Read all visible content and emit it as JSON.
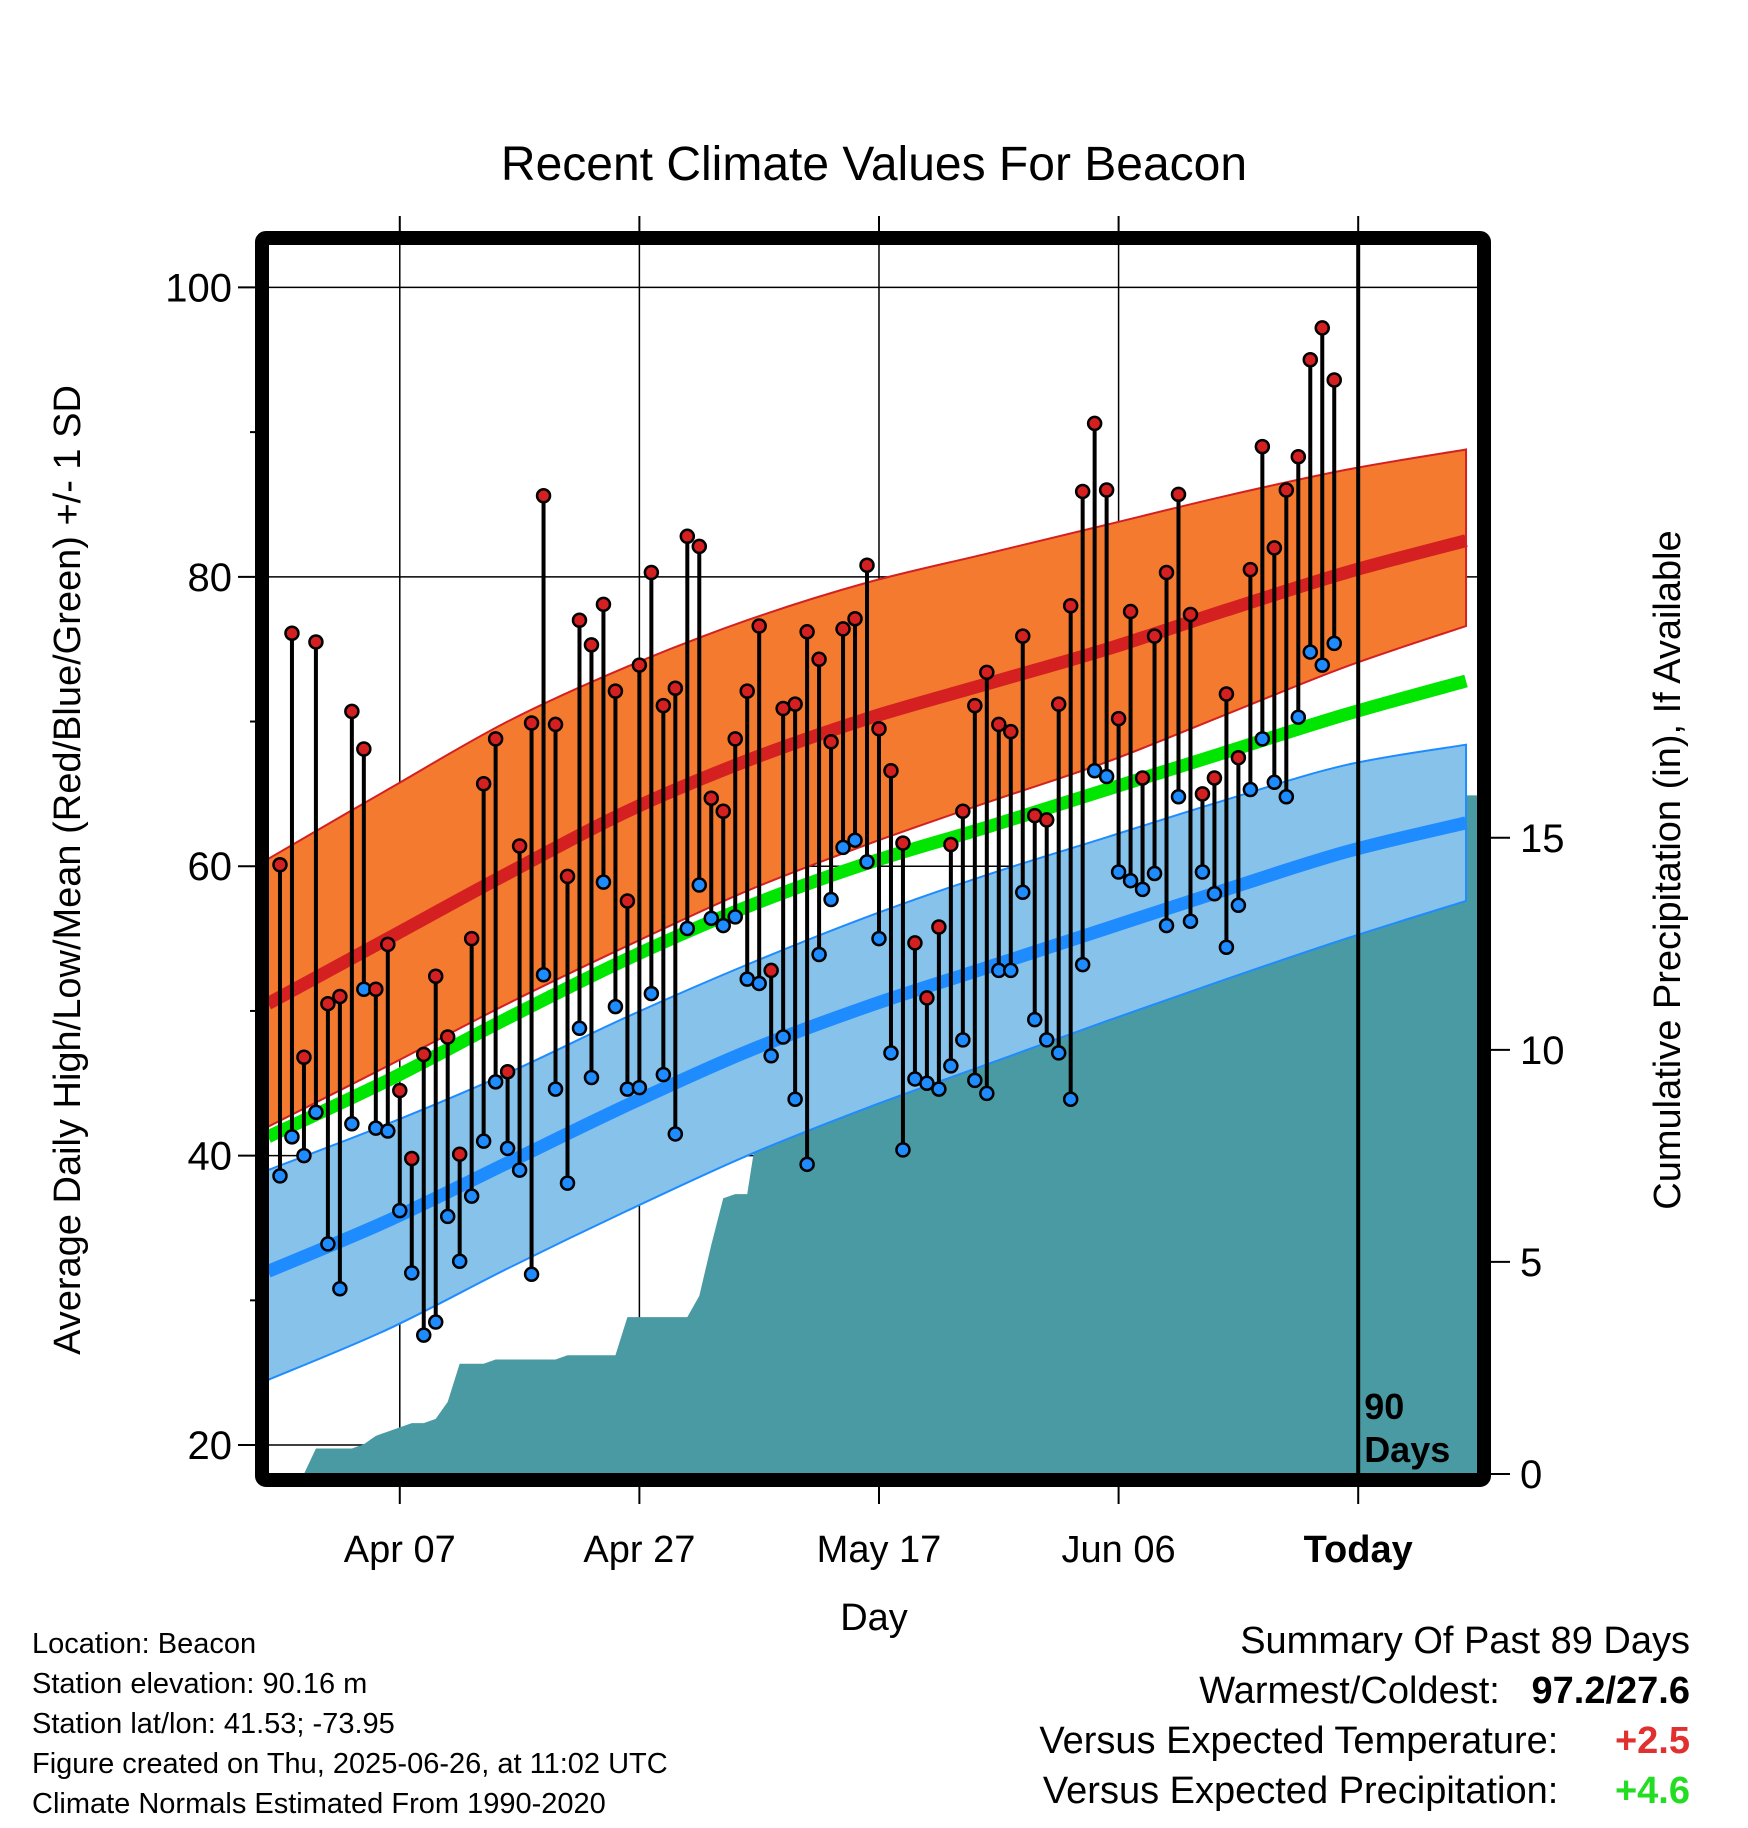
{
  "chart_data": {
    "type": "line",
    "title": "Recent Climate Values For Beacon",
    "xlabel": "Day",
    "ylabel": "Average Daily High/Low/Mean (Red/Blue/Green) +/- 1 SD",
    "y2label": "Cumulative Precipitation (in), If Available",
    "ylim": [
      18,
      103
    ],
    "y2lim": [
      0,
      29
    ],
    "y_ticks": [
      20,
      40,
      60,
      80,
      100
    ],
    "y2_ticks": [
      0,
      5,
      10,
      15
    ],
    "x_ticks": [
      {
        "day": 11,
        "label": "Apr 07"
      },
      {
        "day": 31,
        "label": "Apr 27"
      },
      {
        "day": 51,
        "label": "May 17"
      },
      {
        "day": 71,
        "label": "Jun 06"
      },
      {
        "day": 91,
        "label": "Today"
      }
    ],
    "xlim": [
      0,
      101
    ],
    "today_marker": {
      "day": 91,
      "label_line1": "90",
      "label_line2": "Days"
    },
    "grid": true,
    "colors": {
      "high": "#d42020",
      "high_band": "#f47a30",
      "low": "#1e8cff",
      "low_band": "#86c2ea",
      "mean": "#00e600",
      "precip": "#4a9aa3"
    },
    "normals": {
      "days": [
        0,
        10,
        20,
        30,
        40,
        50,
        60,
        70,
        80,
        90,
        100
      ],
      "high_mean": [
        50.5,
        55.0,
        59.5,
        63.8,
        67.3,
        70.2,
        72.6,
        75.0,
        77.7,
        80.3,
        82.5
      ],
      "high_upper": [
        60.5,
        65.3,
        70.0,
        73.8,
        77.0,
        79.6,
        81.6,
        83.6,
        85.6,
        87.4,
        88.8
      ],
      "high_lower": [
        42.0,
        46.2,
        50.5,
        54.5,
        58.3,
        61.5,
        64.4,
        67.2,
        70.5,
        73.8,
        76.6
      ],
      "low_mean": [
        32.0,
        35.5,
        39.5,
        43.5,
        47.2,
        50.3,
        53.0,
        55.7,
        58.4,
        61.0,
        63.0
      ],
      "low_upper": [
        39.0,
        42.2,
        45.7,
        49.6,
        53.2,
        56.5,
        59.4,
        62.0,
        64.6,
        67.0,
        68.4
      ],
      "low_lower": [
        24.5,
        28.0,
        32.2,
        36.2,
        40.0,
        43.3,
        46.3,
        49.3,
        52.2,
        55.0,
        57.6
      ],
      "mean": [
        41.3,
        45.2,
        49.5,
        53.6,
        57.2,
        60.2,
        62.7,
        65.3,
        67.9,
        70.5,
        72.8
      ]
    },
    "series": [
      {
        "name": "Daily High",
        "x": [
          1,
          2,
          3,
          4,
          5,
          6,
          7,
          8,
          9,
          10,
          11,
          12,
          13,
          14,
          15,
          16,
          17,
          18,
          19,
          20,
          21,
          22,
          23,
          24,
          25,
          26,
          27,
          28,
          29,
          30,
          31,
          32,
          33,
          34,
          35,
          36,
          37,
          38,
          39,
          40,
          41,
          42,
          43,
          44,
          45,
          46,
          47,
          48,
          49,
          50,
          51,
          52,
          53,
          54,
          55,
          56,
          57,
          58,
          59,
          60,
          61,
          62,
          63,
          64,
          65,
          66,
          67,
          68,
          69,
          70,
          71,
          72,
          73,
          74,
          75,
          76,
          77,
          78,
          79,
          80,
          81,
          82,
          83,
          84,
          85,
          86,
          87,
          88,
          89
        ],
        "values": [
          60.1,
          76.1,
          46.8,
          75.5,
          50.5,
          51.0,
          70.7,
          68.1,
          51.5,
          54.6,
          44.5,
          39.8,
          47.0,
          52.4,
          48.2,
          40.1,
          55.0,
          65.7,
          68.8,
          45.8,
          61.4,
          69.9,
          85.6,
          69.8,
          59.3,
          77.0,
          75.3,
          78.1,
          72.1,
          57.6,
          73.9,
          80.3,
          71.1,
          72.3,
          82.8,
          82.1,
          64.7,
          63.8,
          68.8,
          72.1,
          76.6,
          52.8,
          70.9,
          71.2,
          76.2,
          74.3,
          68.6,
          76.4,
          77.1,
          80.8,
          69.5,
          66.6,
          61.6,
          54.7,
          50.9,
          55.8,
          61.5,
          63.8,
          71.1,
          73.4,
          69.8,
          69.3,
          75.9,
          63.5,
          63.2,
          71.2,
          78.0,
          85.9,
          90.6,
          86.0,
          70.2,
          77.6,
          66.1,
          75.9,
          80.3,
          85.7,
          77.4,
          65.0,
          66.1,
          71.9,
          67.5,
          80.5,
          89.0,
          82.0,
          86.0,
          88.3,
          95.0,
          97.2,
          93.6
        ]
      },
      {
        "name": "Daily Low",
        "x": [
          1,
          2,
          3,
          4,
          5,
          6,
          7,
          8,
          9,
          10,
          11,
          12,
          13,
          14,
          15,
          16,
          17,
          18,
          19,
          20,
          21,
          22,
          23,
          24,
          25,
          26,
          27,
          28,
          29,
          30,
          31,
          32,
          33,
          34,
          35,
          36,
          37,
          38,
          39,
          40,
          41,
          42,
          43,
          44,
          45,
          46,
          47,
          48,
          49,
          50,
          51,
          52,
          53,
          54,
          55,
          56,
          57,
          58,
          59,
          60,
          61,
          62,
          63,
          64,
          65,
          66,
          67,
          68,
          69,
          70,
          71,
          72,
          73,
          74,
          75,
          76,
          77,
          78,
          79,
          80,
          81,
          82,
          83,
          84,
          85,
          86,
          87,
          88,
          89
        ],
        "values": [
          38.6,
          41.3,
          40.0,
          43.0,
          33.9,
          30.8,
          42.2,
          51.5,
          41.9,
          41.7,
          36.2,
          31.9,
          27.6,
          28.5,
          35.8,
          32.7,
          37.2,
          41.0,
          45.1,
          40.5,
          39.0,
          31.8,
          52.5,
          44.6,
          38.1,
          48.8,
          45.4,
          58.9,
          50.3,
          44.6,
          44.7,
          51.2,
          45.6,
          41.5,
          55.7,
          58.7,
          56.4,
          55.9,
          56.5,
          52.2,
          51.9,
          46.9,
          48.2,
          43.9,
          39.4,
          53.9,
          57.7,
          61.3,
          61.8,
          60.3,
          55.0,
          47.1,
          40.4,
          45.3,
          45.0,
          44.6,
          46.2,
          48.0,
          45.2,
          44.3,
          52.8,
          52.8,
          58.2,
          49.4,
          48.0,
          47.1,
          43.9,
          53.2,
          66.6,
          66.2,
          59.6,
          59.0,
          58.4,
          59.5,
          55.9,
          64.8,
          56.2,
          59.6,
          58.1,
          54.4,
          57.3,
          65.3,
          68.8,
          65.8,
          64.8,
          70.3,
          74.8,
          73.9,
          75.4
        ]
      }
    ],
    "precip_cumulative": {
      "days": [
        1,
        2,
        3,
        4,
        5,
        6,
        7,
        8,
        9,
        10,
        11,
        12,
        13,
        14,
        15,
        16,
        17,
        18,
        19,
        20,
        21,
        22,
        23,
        24,
        25,
        26,
        27,
        28,
        29,
        30,
        31,
        32,
        33,
        34,
        35,
        36,
        37,
        38,
        39,
        40,
        41,
        42,
        43,
        44,
        45,
        46,
        47,
        48,
        49,
        50,
        51,
        52,
        53,
        54,
        55,
        56,
        57,
        58,
        59,
        60,
        61,
        62,
        63,
        64,
        65,
        66,
        67,
        68,
        69,
        70,
        71,
        72,
        73,
        74,
        75,
        76,
        77,
        78,
        79,
        80,
        81,
        82,
        83,
        84,
        85,
        86,
        87,
        88,
        89
      ],
      "values": [
        0.0,
        0.0,
        0.0,
        0.6,
        0.6,
        0.6,
        0.6,
        0.7,
        0.9,
        1.0,
        1.1,
        1.2,
        1.2,
        1.3,
        1.7,
        2.6,
        2.6,
        2.6,
        2.7,
        2.7,
        2.7,
        2.7,
        2.7,
        2.7,
        2.8,
        2.8,
        2.8,
        2.8,
        2.8,
        3.7,
        3.7,
        3.7,
        3.7,
        3.7,
        3.7,
        4.2,
        5.4,
        6.5,
        6.6,
        6.6,
        8.4,
        8.6,
        8.6,
        8.6,
        8.7,
        8.8,
        8.8,
        8.9,
        8.9,
        9.0,
        9.1,
        9.6,
        9.8,
        9.9,
        9.9,
        9.9,
        9.9,
        10.0,
        10.0,
        10.0,
        10.1,
        10.1,
        13.2,
        13.2,
        13.2,
        13.2,
        13.3,
        13.5,
        13.9,
        14.0,
        14.3,
        14.4,
        14.4,
        14.4,
        14.4,
        14.5,
        14.6,
        14.6,
        15.0,
        15.3,
        15.9,
        15.9,
        15.9,
        15.9,
        15.9,
        16.0,
        16.0,
        16.0,
        16.0
      ]
    }
  },
  "info": {
    "location": "Location: Beacon",
    "elevation": "Station elevation: 90.16 m",
    "latlon": "Station lat/lon: 41.53; -73.95",
    "created": "Figure created on Thu, 2025-06-26, at 11:02 UTC",
    "normals": "Climate Normals Estimated From 1990-2020"
  },
  "summary": {
    "title": "Summary Of Past 89 Days",
    "warmest_label": "Warmest/Coldest:",
    "warmest_value": "97.2/27.6",
    "temp_label": "Versus Expected Temperature:",
    "temp_value": "+2.5",
    "temp_color": "#e03030",
    "precip_label": "Versus Expected Precipitation:",
    "precip_value": "+4.6",
    "precip_color": "#22dd22"
  }
}
